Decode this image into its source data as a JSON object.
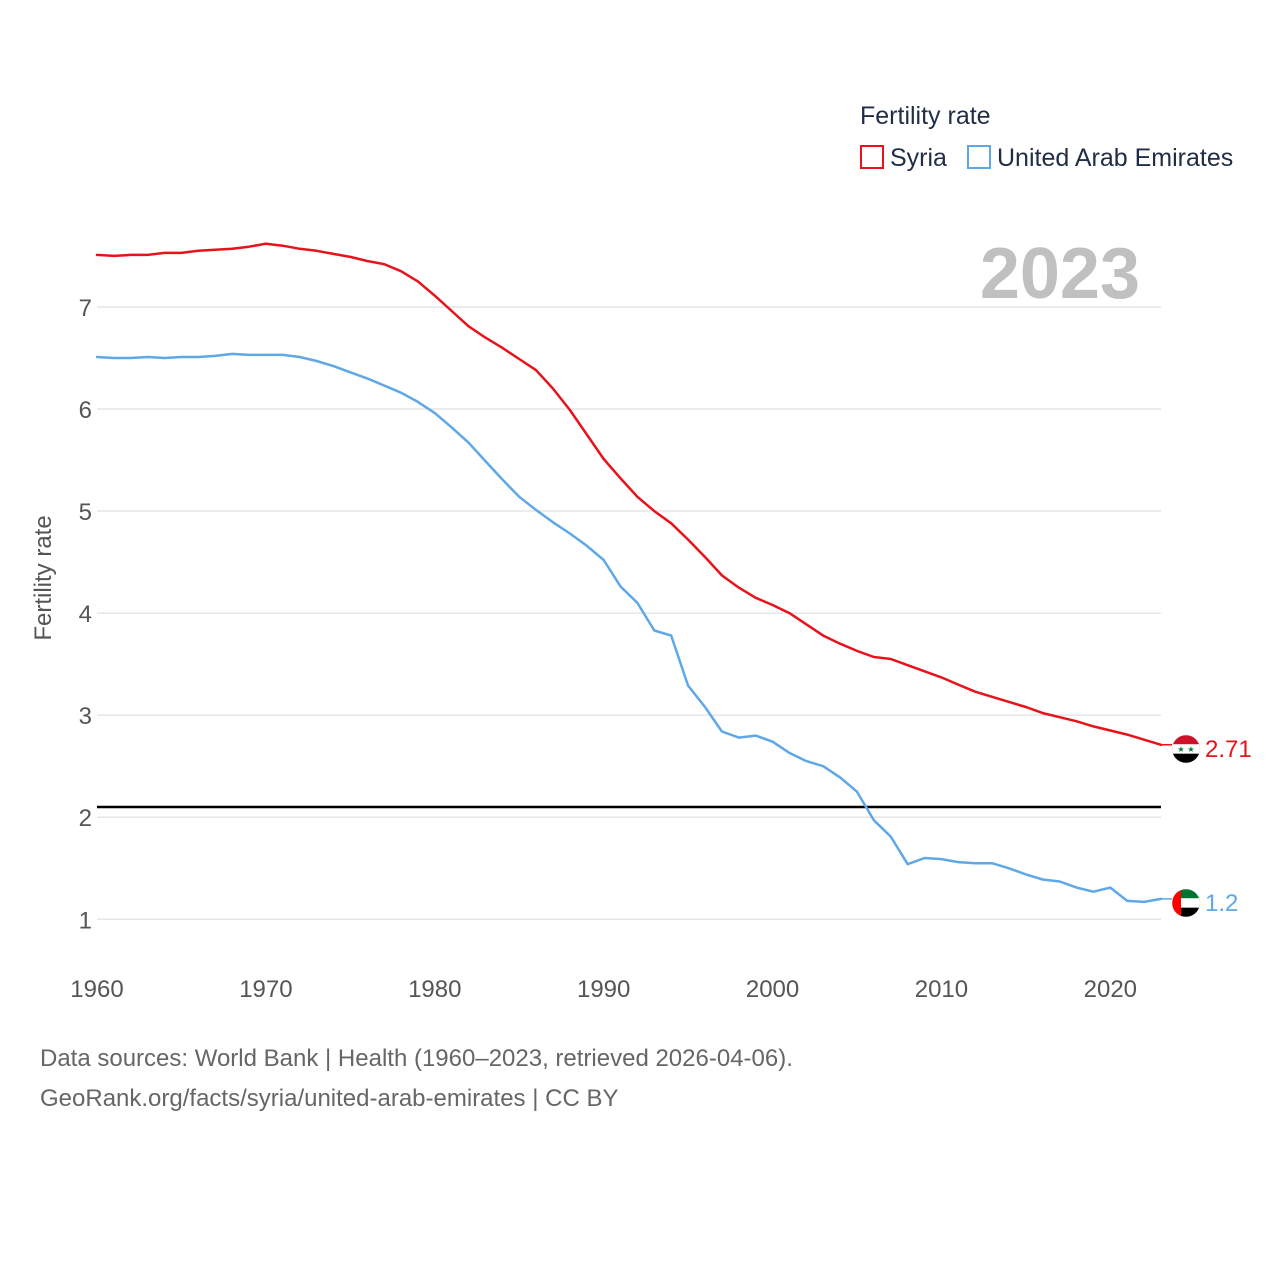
{
  "chart_data": {
    "type": "line",
    "title": "Fertility rate",
    "ylabel": "Fertility rate",
    "xlabel": "",
    "year_label": "2023",
    "xlim": [
      1960,
      2023
    ],
    "ylim": [
      0.65,
      7.95
    ],
    "x_ticks": [
      1960,
      1970,
      1980,
      1990,
      2000,
      2010,
      2020
    ],
    "y_ticks": [
      1,
      2,
      3,
      4,
      5,
      6,
      7
    ],
    "reference_line": 2.1,
    "grid": true,
    "legend_position": "top-right",
    "x": [
      1960,
      1961,
      1962,
      1963,
      1964,
      1965,
      1966,
      1967,
      1968,
      1969,
      1970,
      1971,
      1972,
      1973,
      1974,
      1975,
      1976,
      1977,
      1978,
      1979,
      1980,
      1981,
      1982,
      1983,
      1984,
      1985,
      1986,
      1987,
      1988,
      1989,
      1990,
      1991,
      1992,
      1993,
      1994,
      1995,
      1996,
      1997,
      1998,
      1999,
      2000,
      2001,
      2002,
      2003,
      2004,
      2005,
      2006,
      2007,
      2008,
      2009,
      2010,
      2011,
      2012,
      2013,
      2014,
      2015,
      2016,
      2017,
      2018,
      2019,
      2020,
      2021,
      2022,
      2023
    ],
    "series": [
      {
        "name": "Syria",
        "color": "#e8131a",
        "flag": "syria-flag-icon",
        "end_label": "2.71",
        "values": [
          7.51,
          7.5,
          7.51,
          7.51,
          7.53,
          7.53,
          7.55,
          7.56,
          7.57,
          7.59,
          7.62,
          7.6,
          7.57,
          7.55,
          7.52,
          7.49,
          7.45,
          7.42,
          7.35,
          7.25,
          7.11,
          6.96,
          6.81,
          6.7,
          6.6,
          6.49,
          6.38,
          6.2,
          5.99,
          5.75,
          5.51,
          5.32,
          5.14,
          5.0,
          4.88,
          4.72,
          4.55,
          4.37,
          4.25,
          4.15,
          4.08,
          4.0,
          3.89,
          3.78,
          3.7,
          3.63,
          3.57,
          3.55,
          3.49,
          3.43,
          3.37,
          3.3,
          3.23,
          3.18,
          3.13,
          3.08,
          3.02,
          2.98,
          2.94,
          2.89,
          2.85,
          2.81,
          2.76,
          2.71
        ]
      },
      {
        "name": "United Arab Emirates",
        "color": "#5fa8e8",
        "flag": "uae-flag-icon",
        "end_label": "1.2",
        "values": [
          6.51,
          6.5,
          6.5,
          6.51,
          6.5,
          6.51,
          6.51,
          6.52,
          6.54,
          6.53,
          6.53,
          6.53,
          6.51,
          6.47,
          6.42,
          6.36,
          6.3,
          6.23,
          6.16,
          6.07,
          5.96,
          5.82,
          5.67,
          5.49,
          5.31,
          5.14,
          5.01,
          4.89,
          4.78,
          4.66,
          4.52,
          4.26,
          4.1,
          3.83,
          3.78,
          3.29,
          3.08,
          2.84,
          2.78,
          2.8,
          2.74,
          2.63,
          2.55,
          2.5,
          2.39,
          2.25,
          1.97,
          1.81,
          1.54,
          1.6,
          1.59,
          1.56,
          1.55,
          1.55,
          1.5,
          1.44,
          1.39,
          1.37,
          1.31,
          1.27,
          1.31,
          1.18,
          1.17,
          1.2
        ]
      }
    ]
  },
  "footer": {
    "line1": "Data sources: World Bank | Health (1960–2023, retrieved 2026-04-06).",
    "line2": "GeoRank.org/facts/syria/united-arab-emirates | CC BY"
  }
}
